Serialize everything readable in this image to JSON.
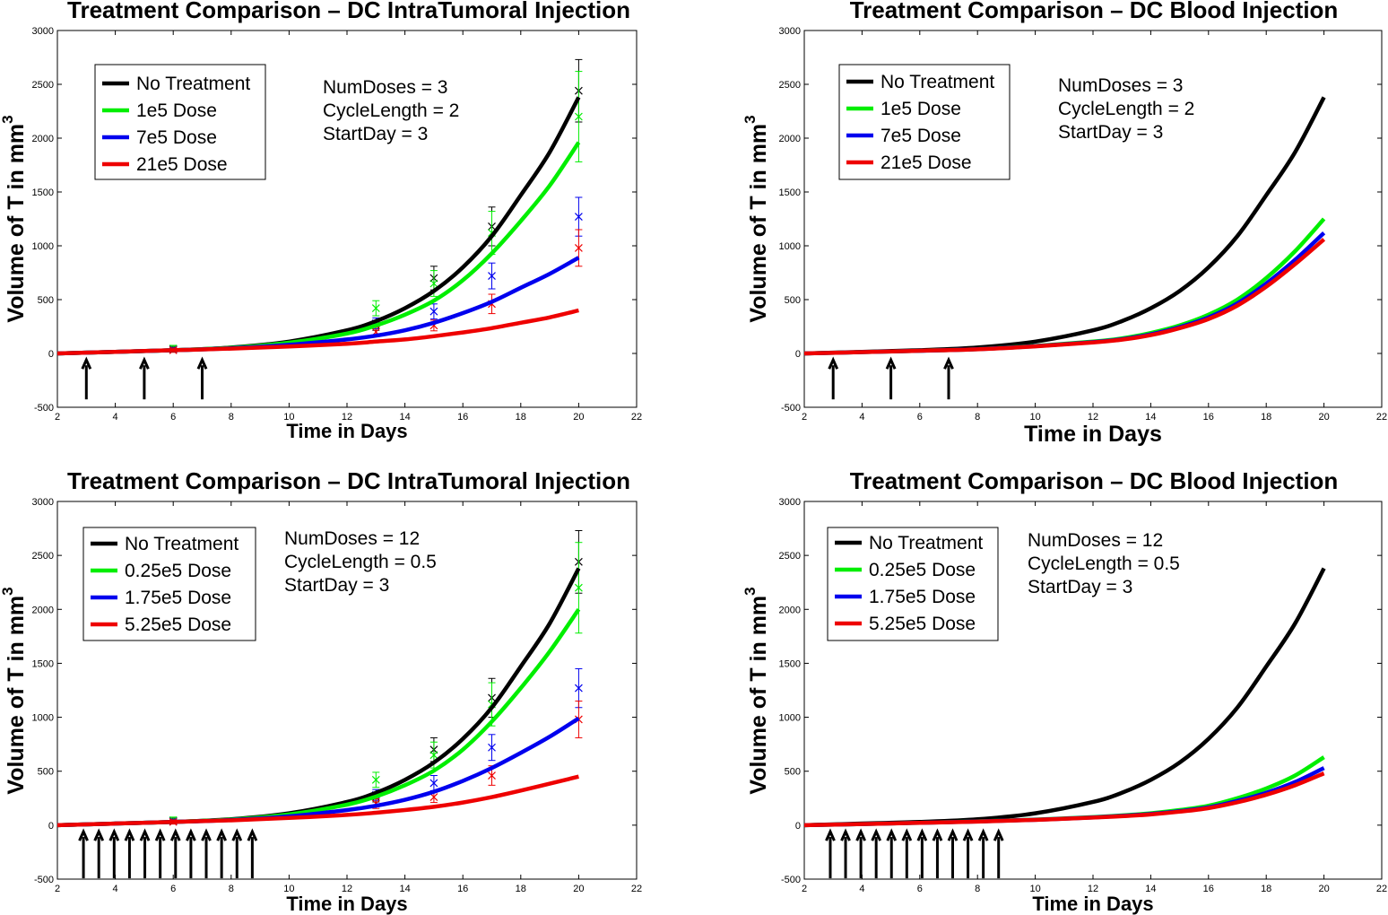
{
  "colors": {
    "no_treatment": "#000000",
    "low": "#00ee00",
    "mid": "#0000ee",
    "high": "#ee0000"
  },
  "chart_data": [
    {
      "type": "line",
      "title": "Treatment Comparison – DC IntraTumoral Injection",
      "xlabel": "Time in Days",
      "ylabel": "Volume of T in mm",
      "ylabel_sup": "3",
      "xlim": [
        2,
        22
      ],
      "ylim": [
        -500,
        3000
      ],
      "xticks": [
        "2",
        "4",
        "6",
        "8",
        "10",
        "12",
        "14",
        "16",
        "18",
        "20",
        "22"
      ],
      "yticks": [
        "-500",
        "0",
        "500",
        "1000",
        "1500",
        "2000",
        "2500",
        "3000"
      ],
      "annotations": [
        "NumDoses = 3",
        "CycleLength = 2",
        "StartDay = 3"
      ],
      "dose_arrows_days": [
        3,
        5,
        7
      ],
      "series": [
        {
          "name": "No Treatment",
          "color_key": "no_treatment",
          "x": [
            2,
            4,
            6,
            8,
            10,
            12,
            13,
            14,
            15,
            16,
            17,
            18,
            19,
            20
          ],
          "values": [
            0,
            15,
            30,
            55,
            110,
            215,
            300,
            420,
            580,
            800,
            1090,
            1470,
            1870,
            2380
          ]
        },
        {
          "name": "1e5 Dose",
          "color_key": "low",
          "x": [
            2,
            4,
            6,
            8,
            10,
            12,
            13,
            14,
            15,
            16,
            17,
            18,
            19,
            20
          ],
          "values": [
            0,
            15,
            30,
            52,
            100,
            185,
            260,
            360,
            490,
            680,
            930,
            1230,
            1560,
            1960
          ]
        },
        {
          "name": "7e5 Dose",
          "color_key": "mid",
          "x": [
            2,
            4,
            6,
            8,
            10,
            12,
            13,
            14,
            15,
            16,
            17,
            18,
            19,
            20
          ],
          "values": [
            0,
            15,
            30,
            48,
            80,
            130,
            165,
            215,
            285,
            375,
            480,
            610,
            740,
            890
          ]
        },
        {
          "name": "21e5 Dose",
          "color_key": "high",
          "x": [
            2,
            4,
            6,
            8,
            10,
            12,
            13,
            14,
            15,
            16,
            17,
            18,
            19,
            20
          ],
          "values": [
            0,
            15,
            30,
            45,
            65,
            90,
            110,
            130,
            160,
            195,
            235,
            285,
            335,
            400
          ]
        }
      ],
      "errorbars": [
        {
          "color_key": "no_treatment",
          "points": [
            {
              "x": 6,
              "y": 40,
              "err": 25
            },
            {
              "x": 13,
              "y": 260,
              "err": 45
            },
            {
              "x": 15,
              "y": 700,
              "err": 110
            },
            {
              "x": 17,
              "y": 1180,
              "err": 180
            },
            {
              "x": 20,
              "y": 2440,
              "err": 290
            }
          ]
        },
        {
          "color_key": "low",
          "points": [
            {
              "x": 6,
              "y": 45,
              "err": 30
            },
            {
              "x": 13,
              "y": 420,
              "err": 70
            },
            {
              "x": 15,
              "y": 650,
              "err": 120
            },
            {
              "x": 17,
              "y": 1120,
              "err": 200
            },
            {
              "x": 20,
              "y": 2200,
              "err": 420
            }
          ]
        },
        {
          "color_key": "mid",
          "points": [
            {
              "x": 6,
              "y": 35,
              "err": 20
            },
            {
              "x": 13,
              "y": 280,
              "err": 50
            },
            {
              "x": 15,
              "y": 390,
              "err": 70
            },
            {
              "x": 17,
              "y": 720,
              "err": 120
            },
            {
              "x": 20,
              "y": 1270,
              "err": 180
            }
          ]
        },
        {
          "color_key": "high",
          "points": [
            {
              "x": 6,
              "y": 30,
              "err": 20
            },
            {
              "x": 13,
              "y": 200,
              "err": 45
            },
            {
              "x": 15,
              "y": 260,
              "err": 50
            },
            {
              "x": 17,
              "y": 460,
              "err": 90
            },
            {
              "x": 20,
              "y": 980,
              "err": 170
            }
          ]
        }
      ]
    },
    {
      "type": "line",
      "title": "Treatment Comparison – DC Blood Injection",
      "xlabel": "Time in Days",
      "ylabel": "Volume of T in mm",
      "ylabel_sup": "3",
      "xlim": [
        2,
        22
      ],
      "ylim": [
        -500,
        3000
      ],
      "xticks": [
        "2",
        "4",
        "6",
        "8",
        "10",
        "12",
        "14",
        "16",
        "18",
        "20",
        "22"
      ],
      "yticks": [
        "-500",
        "0",
        "500",
        "1000",
        "1500",
        "2000",
        "2500",
        "3000"
      ],
      "annotations": [
        "NumDoses = 3",
        "CycleLength = 2",
        "StartDay = 3"
      ],
      "dose_arrows_days": [
        3,
        5,
        7
      ],
      "series": [
        {
          "name": "No Treatment",
          "color_key": "no_treatment",
          "x": [
            2,
            4,
            6,
            8,
            10,
            12,
            13,
            14,
            15,
            16,
            17,
            18,
            19,
            20
          ],
          "values": [
            0,
            15,
            30,
            55,
            110,
            215,
            300,
            420,
            580,
            800,
            1090,
            1470,
            1870,
            2380
          ]
        },
        {
          "name": "1e5 Dose",
          "color_key": "low",
          "x": [
            2,
            4,
            6,
            8,
            10,
            12,
            13,
            14,
            15,
            16,
            17,
            18,
            19,
            20
          ],
          "values": [
            0,
            12,
            25,
            40,
            70,
            110,
            140,
            190,
            260,
            360,
            500,
            700,
            950,
            1250
          ]
        },
        {
          "name": "7e5 Dose",
          "color_key": "mid",
          "x": [
            2,
            4,
            6,
            8,
            10,
            12,
            13,
            14,
            15,
            16,
            17,
            18,
            19,
            20
          ],
          "values": [
            0,
            12,
            25,
            40,
            68,
            105,
            132,
            178,
            245,
            335,
            465,
            650,
            870,
            1120
          ]
        },
        {
          "name": "21e5 Dose",
          "color_key": "high",
          "x": [
            2,
            4,
            6,
            8,
            10,
            12,
            13,
            14,
            15,
            16,
            17,
            18,
            19,
            20
          ],
          "values": [
            0,
            12,
            25,
            39,
            66,
            102,
            128,
            170,
            235,
            320,
            445,
            620,
            830,
            1060
          ]
        }
      ],
      "errorbars": []
    },
    {
      "type": "line",
      "title": "Treatment Comparison – DC IntraTumoral Injection",
      "xlabel": "Time in Days",
      "ylabel": "Volume of T in mm",
      "ylabel_sup": "3",
      "xlim": [
        2,
        22
      ],
      "ylim": [
        -500,
        3000
      ],
      "xticks": [
        "2",
        "4",
        "6",
        "8",
        "10",
        "12",
        "14",
        "16",
        "18",
        "20",
        "22"
      ],
      "yticks": [
        "-500",
        "0",
        "500",
        "1000",
        "1500",
        "2000",
        "2500",
        "3000"
      ],
      "annotations": [
        "NumDoses = 12",
        "CycleLength = 0.5",
        "StartDay = 3"
      ],
      "dose_arrows_days": [
        2.9,
        3.43,
        3.96,
        4.49,
        5.02,
        5.55,
        6.08,
        6.61,
        7.14,
        7.67,
        8.2,
        8.73
      ],
      "series": [
        {
          "name": "No Treatment",
          "color_key": "no_treatment",
          "x": [
            2,
            4,
            6,
            8,
            10,
            12,
            13,
            14,
            15,
            16,
            17,
            18,
            19,
            20
          ],
          "values": [
            0,
            15,
            30,
            55,
            110,
            215,
            300,
            420,
            580,
            800,
            1090,
            1470,
            1870,
            2380
          ]
        },
        {
          "name": "0.25e5 Dose",
          "color_key": "low",
          "x": [
            2,
            4,
            6,
            8,
            10,
            12,
            13,
            14,
            15,
            16,
            17,
            18,
            19,
            20
          ],
          "values": [
            0,
            15,
            30,
            52,
            100,
            190,
            265,
            370,
            505,
            700,
            960,
            1270,
            1610,
            2000
          ]
        },
        {
          "name": "1.75e5 Dose",
          "color_key": "mid",
          "x": [
            2,
            4,
            6,
            8,
            10,
            12,
            13,
            14,
            15,
            16,
            17,
            18,
            19,
            20
          ],
          "values": [
            0,
            15,
            30,
            48,
            82,
            140,
            180,
            235,
            310,
            410,
            530,
            670,
            820,
            990
          ]
        },
        {
          "name": "5.25e5 Dose",
          "color_key": "high",
          "x": [
            2,
            4,
            6,
            8,
            10,
            12,
            13,
            14,
            15,
            16,
            17,
            18,
            19,
            20
          ],
          "values": [
            0,
            15,
            30,
            45,
            67,
            95,
            115,
            140,
            170,
            210,
            260,
            320,
            385,
            450
          ]
        }
      ],
      "errorbars": [
        {
          "color_key": "no_treatment",
          "points": [
            {
              "x": 6,
              "y": 40,
              "err": 25
            },
            {
              "x": 13,
              "y": 260,
              "err": 45
            },
            {
              "x": 15,
              "y": 700,
              "err": 110
            },
            {
              "x": 17,
              "y": 1180,
              "err": 180
            },
            {
              "x": 20,
              "y": 2440,
              "err": 290
            }
          ]
        },
        {
          "color_key": "low",
          "points": [
            {
              "x": 6,
              "y": 45,
              "err": 30
            },
            {
              "x": 13,
              "y": 420,
              "err": 70
            },
            {
              "x": 15,
              "y": 650,
              "err": 120
            },
            {
              "x": 17,
              "y": 1120,
              "err": 200
            },
            {
              "x": 20,
              "y": 2200,
              "err": 420
            }
          ]
        },
        {
          "color_key": "mid",
          "points": [
            {
              "x": 6,
              "y": 35,
              "err": 20
            },
            {
              "x": 13,
              "y": 280,
              "err": 50
            },
            {
              "x": 15,
              "y": 390,
              "err": 70
            },
            {
              "x": 17,
              "y": 720,
              "err": 120
            },
            {
              "x": 20,
              "y": 1270,
              "err": 180
            }
          ]
        },
        {
          "color_key": "high",
          "points": [
            {
              "x": 6,
              "y": 30,
              "err": 20
            },
            {
              "x": 13,
              "y": 200,
              "err": 45
            },
            {
              "x": 15,
              "y": 260,
              "err": 50
            },
            {
              "x": 17,
              "y": 460,
              "err": 90
            },
            {
              "x": 20,
              "y": 980,
              "err": 170
            }
          ]
        }
      ]
    },
    {
      "type": "line",
      "title": "Treatment Comparison – DC Blood Injection",
      "xlabel": "Time in Days",
      "ylabel": "Volume of T in mm",
      "ylabel_sup": "3",
      "xlim": [
        2,
        22
      ],
      "ylim": [
        -500,
        3000
      ],
      "xticks": [
        "2",
        "4",
        "6",
        "8",
        "10",
        "12",
        "14",
        "16",
        "18",
        "20",
        "22"
      ],
      "yticks": [
        "-500",
        "0",
        "500",
        "1000",
        "1500",
        "2000",
        "2500",
        "3000"
      ],
      "annotations": [
        "NumDoses = 12",
        "CycleLength = 0.5",
        "StartDay = 3"
      ],
      "dose_arrows_days": [
        2.9,
        3.43,
        3.96,
        4.49,
        5.02,
        5.55,
        6.08,
        6.61,
        7.14,
        7.67,
        8.2,
        8.73
      ],
      "series": [
        {
          "name": "No Treatment",
          "color_key": "no_treatment",
          "x": [
            2,
            4,
            6,
            8,
            10,
            12,
            13,
            14,
            15,
            16,
            17,
            18,
            19,
            20
          ],
          "values": [
            0,
            15,
            30,
            55,
            110,
            215,
            300,
            420,
            580,
            800,
            1090,
            1470,
            1870,
            2380
          ]
        },
        {
          "name": "0.25e5 Dose",
          "color_key": "low",
          "x": [
            2,
            4,
            6,
            8,
            10,
            12,
            13,
            14,
            15,
            16,
            17,
            18,
            19,
            20
          ],
          "values": [
            0,
            10,
            22,
            35,
            52,
            75,
            90,
            110,
            140,
            180,
            250,
            340,
            460,
            630
          ]
        },
        {
          "name": "1.75e5 Dose",
          "color_key": "mid",
          "x": [
            2,
            4,
            6,
            8,
            10,
            12,
            13,
            14,
            15,
            16,
            17,
            18,
            19,
            20
          ],
          "values": [
            0,
            10,
            22,
            34,
            50,
            72,
            86,
            104,
            130,
            165,
            225,
            300,
            400,
            530
          ]
        },
        {
          "name": "5.25e5 Dose",
          "color_key": "high",
          "x": [
            2,
            4,
            6,
            8,
            10,
            12,
            13,
            14,
            15,
            16,
            17,
            18,
            19,
            20
          ],
          "values": [
            0,
            10,
            22,
            33,
            49,
            70,
            83,
            100,
            125,
            158,
            212,
            282,
            370,
            480
          ]
        }
      ],
      "errorbars": []
    }
  ]
}
